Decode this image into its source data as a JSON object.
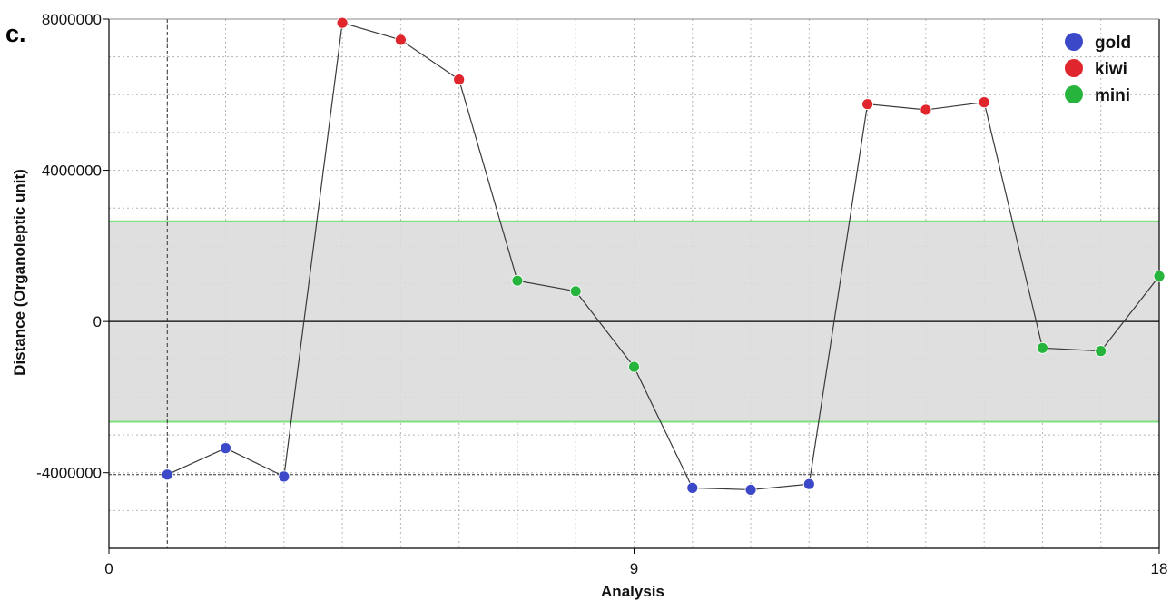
{
  "chart_data": {
    "type": "scatter",
    "panel_label": "c.",
    "title": "",
    "xlabel": "Analysis",
    "ylabel": "Distance (Organoleptic unit)",
    "xlim": [
      0,
      18
    ],
    "ylim": [
      -6000000,
      8000000
    ],
    "x_ticks": [
      0,
      9,
      18
    ],
    "x_tick_labels": [
      "0",
      "9",
      "18"
    ],
    "y_ticks": [
      -4000000,
      0,
      4000000,
      8000000
    ],
    "y_tick_labels": [
      "-4000000",
      "0",
      "4000000",
      "8000000"
    ],
    "grid": true,
    "legend_position": "top-right",
    "acceptance_band": [
      -2650000,
      2650000
    ],
    "reference_lines": {
      "x": 1,
      "y": -4050000
    },
    "colors": {
      "gold": "#3b48c8",
      "kiwi": "#e0262c",
      "mini": "#27b43c",
      "band": "#dcdcdc",
      "band_edge": "#7ee07e",
      "line": "#3a3a3a"
    },
    "series": [
      {
        "name": "gold",
        "x": [
          1,
          2,
          3,
          10,
          11,
          12
        ],
        "y": [
          -4050000,
          -3350000,
          -4100000,
          -4400000,
          -4450000,
          -4300000
        ]
      },
      {
        "name": "kiwi",
        "x": [
          4,
          5,
          6,
          13,
          14,
          15
        ],
        "y": [
          7900000,
          7450000,
          6400000,
          5750000,
          5600000,
          5800000
        ]
      },
      {
        "name": "mini",
        "x": [
          7,
          8,
          9,
          16,
          17,
          18
        ],
        "y": [
          1080000,
          800000,
          -1200000,
          -700000,
          -780000,
          1200000
        ]
      }
    ]
  }
}
